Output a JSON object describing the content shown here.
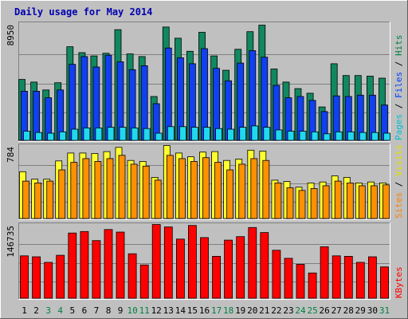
{
  "chart_data": {
    "type": "bar",
    "title": "Daily usage for May 2014",
    "x": [
      "1",
      "2",
      "3",
      "4",
      "5",
      "6",
      "7",
      "8",
      "9",
      "10",
      "11",
      "12",
      "13",
      "14",
      "15",
      "16",
      "17",
      "18",
      "19",
      "20",
      "21",
      "22",
      "23",
      "24",
      "25",
      "26",
      "27",
      "28",
      "29",
      "30",
      "31"
    ],
    "weekend_days": [
      "3",
      "4",
      "10",
      "11",
      "17",
      "18",
      "24",
      "25",
      "31"
    ],
    "panels": [
      {
        "name": "pages-files-hits",
        "axis_label": "8950",
        "ylim": [
          0,
          8950
        ],
        "legend": [
          {
            "text": "Pages",
            "color": "#00c0d0"
          },
          {
            "text": " / ",
            "color": "#000000"
          },
          {
            "text": "Files",
            "color": "#0040ff"
          },
          {
            "text": " / ",
            "color": "#000000"
          },
          {
            "text": "Hits",
            "color": "#008040"
          }
        ],
        "series": [
          {
            "name": "Hits",
            "color": "#108860",
            "values": [
              4650,
              4450,
              3850,
              4400,
              7150,
              6700,
              6450,
              6650,
              8450,
              6600,
              6400,
              3350,
              8650,
              7800,
              6800,
              8250,
              6450,
              5350,
              6950,
              8300,
              8800,
              5450,
              4450,
              3950,
              3600,
              2550,
              5850,
              4950,
              4950,
              4900,
              4750
            ]
          },
          {
            "name": "Files",
            "color": "#1040f0",
            "values": [
              3750,
              3750,
              3250,
              3850,
              5800,
              6400,
              5600,
              6500,
              6000,
              5400,
              5700,
              2800,
              7050,
              6300,
              5850,
              7000,
              5500,
              4550,
              5900,
              6850,
              6350,
              4200,
              3250,
              3350,
              3050,
              2200,
              3400,
              3350,
              3450,
              3450,
              2700
            ]
          },
          {
            "name": "Pages",
            "color": "#20d8f0",
            "values": [
              700,
              600,
              550,
              650,
              850,
              950,
              950,
              1000,
              1000,
              950,
              900,
              550,
              1050,
              1050,
              1000,
              1000,
              900,
              850,
              1000,
              1100,
              1000,
              800,
              700,
              700,
              650,
              500,
              650,
              650,
              600,
              600,
              550
            ]
          }
        ]
      },
      {
        "name": "sites-visits",
        "axis_label": "784",
        "ylim": [
          0,
          784
        ],
        "legend": [
          {
            "text": "Sites",
            "color": "#ff8000"
          },
          {
            "text": " / ",
            "color": "#000000"
          },
          {
            "text": "Visits",
            "color": "#e0e000"
          }
        ],
        "series": [
          {
            "name": "Visits",
            "color": "#ffff30",
            "values": [
              500,
              420,
              420,
              615,
              700,
              700,
              695,
              715,
              760,
              620,
              610,
              440,
              780,
              700,
              660,
              710,
              715,
              620,
              635,
              730,
              720,
              410,
              395,
              335,
              380,
              390,
              455,
              440,
              380,
              390,
              380
            ]
          },
          {
            "name": "Sites",
            "color": "#ff9000",
            "values": [
              400,
              380,
              400,
              520,
              600,
              640,
              610,
              640,
              675,
              580,
              560,
              410,
              675,
              640,
              610,
              650,
              600,
              520,
              580,
              640,
              620,
              380,
              330,
              300,
              320,
              350,
              400,
              380,
              350,
              350,
              360
            ]
          }
        ]
      },
      {
        "name": "kbytes",
        "axis_label": "146735",
        "ylim": [
          0,
          146735
        ],
        "legend": [
          {
            "text": "KBytes",
            "color": "#ff0000"
          }
        ],
        "series": [
          {
            "name": "KBytes",
            "color": "#ff0000",
            "values": [
              84000,
              82000,
              71000,
              85000,
              129000,
              132000,
              114000,
              136000,
              131000,
              88000,
              66000,
              146000,
              141000,
              117000,
              144000,
              120000,
              83000,
              115000,
              122000,
              140000,
              130000,
              95000,
              79000,
              67000,
              50000,
              102000,
              84000,
              83000,
              71000,
              82000,
              62000
            ]
          }
        ]
      }
    ]
  }
}
